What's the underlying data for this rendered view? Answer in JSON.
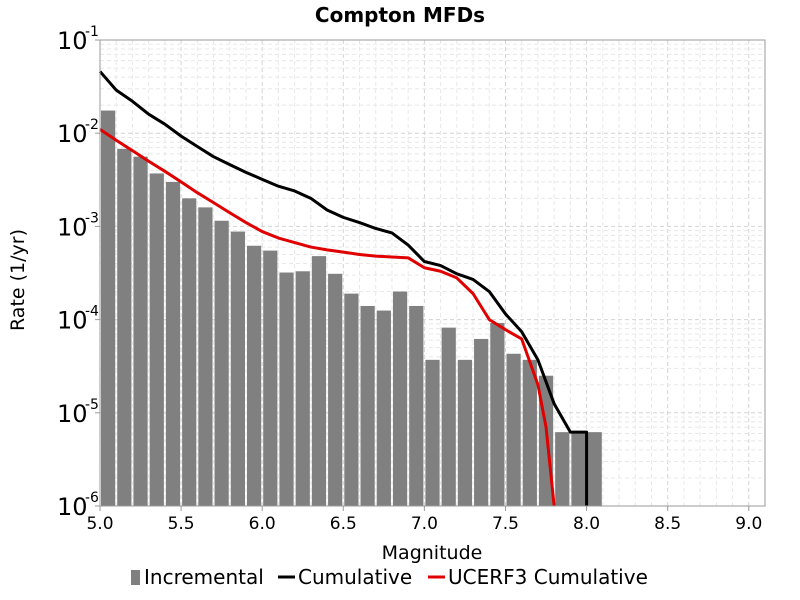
{
  "chart_data": {
    "type": "bar",
    "title": "Compton MFDs",
    "xlabel": "Magnitude",
    "ylabel": "Rate (1/yr)",
    "xlim": [
      5.0,
      9.1
    ],
    "ylim": [
      1e-06,
      0.1
    ],
    "yscale": "log",
    "grid": true,
    "legend_placement": "bottom",
    "xticks": [
      "5.0",
      "5.5",
      "6.0",
      "6.5",
      "7.0",
      "7.5",
      "8.0",
      "8.5",
      "9.0"
    ],
    "yticks": [
      {
        "base": "10",
        "exp": "-6"
      },
      {
        "base": "10",
        "exp": "-5"
      },
      {
        "base": "10",
        "exp": "-4"
      },
      {
        "base": "10",
        "exp": "-3"
      },
      {
        "base": "10",
        "exp": "-2"
      },
      {
        "base": "10",
        "exp": "-1"
      }
    ],
    "series": [
      {
        "name": "Incremental",
        "kind": "bar",
        "color": "#808080",
        "x": [
          5.05,
          5.15,
          5.25,
          5.35,
          5.45,
          5.55,
          5.65,
          5.75,
          5.85,
          5.95,
          6.05,
          6.15,
          6.25,
          6.35,
          6.45,
          6.55,
          6.65,
          6.75,
          6.85,
          6.95,
          7.05,
          7.15,
          7.25,
          7.35,
          7.45,
          7.55,
          7.65,
          7.75,
          7.85,
          7.95,
          8.05
        ],
        "values": [
          0.0175,
          0.0068,
          0.0056,
          0.0037,
          0.003,
          0.002,
          0.0016,
          0.00115,
          0.00088,
          0.00062,
          0.00055,
          0.00032,
          0.00033,
          0.00048,
          0.00031,
          0.00019,
          0.00014,
          0.000125,
          0.0002,
          0.00014,
          3.7e-05,
          8.2e-05,
          3.7e-05,
          6.2e-05,
          9.2e-05,
          4.3e-05,
          3.7e-05,
          2.5e-05,
          6.2e-06,
          6.2e-06,
          6.2e-06
        ]
      },
      {
        "name": "Cumulative",
        "kind": "line",
        "color": "#000000",
        "x": [
          5.0,
          5.1,
          5.2,
          5.3,
          5.4,
          5.5,
          5.6,
          5.7,
          5.8,
          5.9,
          6.0,
          6.1,
          6.2,
          6.3,
          6.4,
          6.5,
          6.6,
          6.7,
          6.8,
          6.9,
          7.0,
          7.1,
          7.2,
          7.3,
          7.4,
          7.5,
          7.6,
          7.7,
          7.8,
          7.9,
          8.0,
          8.0
        ],
        "values": [
          0.046,
          0.029,
          0.022,
          0.016,
          0.0125,
          0.0093,
          0.0072,
          0.0056,
          0.0046,
          0.0038,
          0.0032,
          0.0027,
          0.0024,
          0.002,
          0.0015,
          0.00125,
          0.0011,
          0.00095,
          0.00085,
          0.00063,
          0.00042,
          0.00038,
          0.00031,
          0.00027,
          0.0002,
          0.000115,
          7.4e-05,
          3.7e-05,
          1.25e-05,
          6.2e-06,
          6.2e-06,
          1e-06
        ]
      },
      {
        "name": "UCERF3 Cumulative",
        "kind": "line",
        "color": "#e00000",
        "x": [
          5.0,
          5.1,
          5.2,
          5.3,
          5.4,
          5.5,
          5.6,
          5.7,
          5.8,
          5.9,
          6.0,
          6.1,
          6.2,
          6.3,
          6.4,
          6.5,
          6.6,
          6.7,
          6.8,
          6.9,
          7.0,
          7.1,
          7.2,
          7.3,
          7.4,
          7.5,
          7.6,
          7.7,
          7.75,
          7.8
        ],
        "values": [
          0.011,
          0.0084,
          0.0065,
          0.005,
          0.0039,
          0.003,
          0.0023,
          0.0018,
          0.0014,
          0.0011,
          0.00088,
          0.00075,
          0.00067,
          0.0006,
          0.00056,
          0.00053,
          0.0005,
          0.00048,
          0.00047,
          0.00046,
          0.00036,
          0.00033,
          0.00028,
          0.00019,
          0.0001,
          7.8e-05,
          6.2e-05,
          2e-05,
          7e-06,
          1e-06
        ]
      }
    ]
  }
}
